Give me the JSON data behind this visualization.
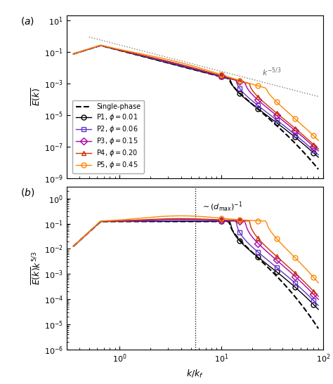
{
  "xlim": [
    0.3,
    100
  ],
  "panel_a": {
    "ylim": [
      1e-09,
      20
    ],
    "ylabel": "$\\overline{E(k)}$",
    "kolmogorov_label": "$k^{-5/3}$"
  },
  "panel_b": {
    "ylim": [
      1e-06,
      3
    ],
    "ylabel": "$\\overline{E(k)}k^{5/3}$",
    "dmax_label": "$\\sim(d_{\\mathrm{max}})^{-1}$",
    "dmax_x": 5.5
  },
  "xlabel": "$k/k_f$",
  "particle_colors": [
    "black",
    "#6633cc",
    "#aa00aa",
    "#cc3300",
    "#ff8800"
  ],
  "particle_markers": [
    "o",
    "s",
    "D",
    "^",
    "o"
  ],
  "phis": [
    0.01,
    0.06,
    0.15,
    0.2,
    0.45
  ]
}
